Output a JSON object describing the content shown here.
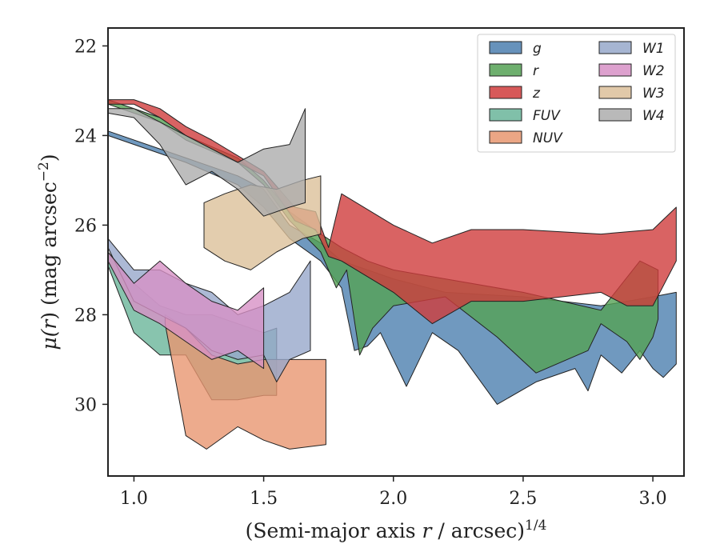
{
  "chart_data": {
    "type": "area",
    "x_label": {
      "prefix": "(Semi-major axis ",
      "var": "r",
      "suffix": " / arcsec)",
      "sup": "1/4"
    },
    "y_label": {
      "prefix": "μ(",
      "var": "r",
      "mid": ") (mag arcsec",
      "sup": "−2",
      "suffix": ")"
    },
    "xlim": [
      0.9,
      3.12
    ],
    "ylim": [
      31.6,
      21.6
    ],
    "y_inverted": true,
    "x_ticks": [
      1.0,
      1.5,
      2.0,
      2.5,
      3.0
    ],
    "x_tick_labels": [
      "1.0",
      "1.5",
      "2.0",
      "2.5",
      "3.0"
    ],
    "y_ticks": [
      22,
      24,
      26,
      28,
      30
    ],
    "y_tick_labels": [
      "22",
      "24",
      "26",
      "28",
      "30"
    ],
    "grid": false,
    "legend_position": "top-right",
    "legend_columns": 2,
    "series": [
      {
        "name": "g",
        "color": "#4c7faf",
        "upper": [
          [
            0.9,
            23.9
          ],
          [
            1.2,
            24.5
          ],
          [
            1.4,
            24.9
          ],
          [
            1.5,
            25.2
          ],
          [
            1.6,
            26.0
          ],
          [
            1.72,
            26.4
          ],
          [
            1.8,
            26.8
          ],
          [
            1.9,
            27.0
          ],
          [
            2.0,
            27.2
          ],
          [
            2.2,
            27.5
          ],
          [
            2.5,
            27.6
          ],
          [
            2.8,
            27.8
          ],
          [
            3.0,
            27.6
          ],
          [
            3.09,
            27.5
          ]
        ],
        "lower": [
          [
            0.9,
            24.0
          ],
          [
            1.2,
            24.6
          ],
          [
            1.4,
            25.1
          ],
          [
            1.5,
            25.6
          ],
          [
            1.6,
            26.3
          ],
          [
            1.72,
            26.8
          ],
          [
            1.8,
            27.4
          ],
          [
            1.85,
            28.8
          ],
          [
            1.9,
            28.7
          ],
          [
            1.95,
            28.4
          ],
          [
            2.05,
            29.6
          ],
          [
            2.15,
            28.4
          ],
          [
            2.25,
            28.8
          ],
          [
            2.4,
            30.0
          ],
          [
            2.55,
            29.5
          ],
          [
            2.7,
            29.2
          ],
          [
            2.75,
            29.7
          ],
          [
            2.8,
            28.9
          ],
          [
            2.88,
            29.3
          ],
          [
            2.95,
            28.8
          ],
          [
            3.0,
            29.2
          ],
          [
            3.04,
            29.4
          ],
          [
            3.09,
            29.1
          ]
        ]
      },
      {
        "name": "r",
        "color": "#55a155",
        "upper": [
          [
            0.9,
            23.2
          ],
          [
            1.1,
            23.6
          ],
          [
            1.2,
            24.0
          ],
          [
            1.4,
            24.5
          ],
          [
            1.5,
            25.0
          ],
          [
            1.6,
            25.7
          ],
          [
            1.72,
            26.2
          ],
          [
            1.8,
            26.5
          ],
          [
            1.9,
            26.8
          ],
          [
            2.0,
            27.0
          ],
          [
            2.2,
            27.2
          ],
          [
            2.5,
            27.5
          ],
          [
            2.8,
            27.9
          ],
          [
            2.95,
            26.8
          ],
          [
            3.02,
            27.0
          ]
        ],
        "lower": [
          [
            0.9,
            23.3
          ],
          [
            1.1,
            23.7
          ],
          [
            1.2,
            24.1
          ],
          [
            1.4,
            24.6
          ],
          [
            1.5,
            25.1
          ],
          [
            1.6,
            25.9
          ],
          [
            1.72,
            26.6
          ],
          [
            1.78,
            27.4
          ],
          [
            1.82,
            27.0
          ],
          [
            1.87,
            28.9
          ],
          [
            1.92,
            28.3
          ],
          [
            2.0,
            27.8
          ],
          [
            2.2,
            27.6
          ],
          [
            2.4,
            28.5
          ],
          [
            2.55,
            29.3
          ],
          [
            2.75,
            28.8
          ],
          [
            2.8,
            28.2
          ],
          [
            2.9,
            28.6
          ],
          [
            2.95,
            29.0
          ],
          [
            3.0,
            28.5
          ],
          [
            3.02,
            28.1
          ]
        ]
      },
      {
        "name": "z",
        "color": "#d03c3c",
        "upper": [
          [
            0.9,
            23.2
          ],
          [
            1.0,
            23.2
          ],
          [
            1.1,
            23.4
          ],
          [
            1.2,
            23.8
          ],
          [
            1.3,
            24.1
          ],
          [
            1.5,
            24.8
          ],
          [
            1.62,
            25.6
          ],
          [
            1.7,
            25.7
          ],
          [
            1.75,
            26.5
          ],
          [
            1.8,
            25.3
          ],
          [
            2.0,
            26.0
          ],
          [
            2.15,
            26.4
          ],
          [
            2.3,
            26.1
          ],
          [
            2.5,
            26.1
          ],
          [
            2.8,
            26.2
          ],
          [
            3.0,
            26.1
          ],
          [
            3.09,
            25.6
          ]
        ],
        "lower": [
          [
            0.9,
            23.3
          ],
          [
            1.0,
            23.3
          ],
          [
            1.1,
            23.6
          ],
          [
            1.2,
            24.0
          ],
          [
            1.3,
            24.3
          ],
          [
            1.5,
            24.9
          ],
          [
            1.62,
            25.9
          ],
          [
            1.7,
            26.1
          ],
          [
            1.75,
            26.7
          ],
          [
            1.8,
            26.8
          ],
          [
            2.0,
            27.5
          ],
          [
            2.15,
            28.2
          ],
          [
            2.3,
            27.7
          ],
          [
            2.5,
            27.7
          ],
          [
            2.8,
            27.5
          ],
          [
            2.9,
            27.8
          ],
          [
            3.0,
            27.8
          ],
          [
            3.09,
            26.8
          ]
        ]
      },
      {
        "name": "FUV",
        "color": "#6ab59a",
        "upper": [
          [
            0.9,
            26.6
          ],
          [
            1.0,
            27.3
          ],
          [
            1.1,
            27.8
          ],
          [
            1.2,
            28.0
          ],
          [
            1.3,
            28.0
          ],
          [
            1.4,
            28.2
          ],
          [
            1.5,
            28.4
          ],
          [
            1.55,
            28.3
          ]
        ],
        "lower": [
          [
            0.9,
            26.9
          ],
          [
            1.0,
            28.4
          ],
          [
            1.1,
            28.9
          ],
          [
            1.2,
            28.9
          ],
          [
            1.3,
            29.9
          ],
          [
            1.4,
            29.9
          ],
          [
            1.5,
            29.8
          ],
          [
            1.55,
            29.8
          ]
        ]
      },
      {
        "name": "NUV",
        "color": "#e89670",
        "upper": [
          [
            1.12,
            28.0
          ],
          [
            1.2,
            28.3
          ],
          [
            1.3,
            28.9
          ],
          [
            1.4,
            29.1
          ],
          [
            1.5,
            29.0
          ],
          [
            1.6,
            29.0
          ],
          [
            1.74,
            29.0
          ]
        ],
        "lower": [
          [
            1.12,
            28.2
          ],
          [
            1.2,
            30.7
          ],
          [
            1.28,
            31.0
          ],
          [
            1.4,
            30.5
          ],
          [
            1.5,
            30.8
          ],
          [
            1.6,
            31.0
          ],
          [
            1.74,
            30.9
          ]
        ]
      },
      {
        "name": "W1",
        "color": "#97a8ca",
        "upper": [
          [
            0.9,
            26.3
          ],
          [
            1.0,
            27.0
          ],
          [
            1.1,
            27.0
          ],
          [
            1.2,
            27.3
          ],
          [
            1.3,
            27.5
          ],
          [
            1.4,
            28.0
          ],
          [
            1.5,
            27.8
          ],
          [
            1.6,
            27.5
          ],
          [
            1.68,
            26.8
          ]
        ],
        "lower": [
          [
            0.9,
            26.5
          ],
          [
            1.0,
            27.7
          ],
          [
            1.1,
            28.0
          ],
          [
            1.2,
            28.3
          ],
          [
            1.3,
            28.8
          ],
          [
            1.4,
            29.0
          ],
          [
            1.5,
            28.9
          ],
          [
            1.55,
            29.5
          ],
          [
            1.6,
            29.0
          ],
          [
            1.68,
            28.8
          ]
        ]
      },
      {
        "name": "W2",
        "color": "#d791c6",
        "upper": [
          [
            0.9,
            26.6
          ],
          [
            1.0,
            27.3
          ],
          [
            1.1,
            26.8
          ],
          [
            1.2,
            27.3
          ],
          [
            1.3,
            27.7
          ],
          [
            1.4,
            27.9
          ],
          [
            1.5,
            27.4
          ]
        ],
        "lower": [
          [
            0.9,
            26.8
          ],
          [
            1.0,
            27.9
          ],
          [
            1.1,
            28.2
          ],
          [
            1.2,
            28.6
          ],
          [
            1.3,
            29.0
          ],
          [
            1.4,
            28.8
          ],
          [
            1.5,
            29.2
          ]
        ]
      },
      {
        "name": "W3",
        "color": "#dcc09a",
        "upper": [
          [
            1.27,
            25.5
          ],
          [
            1.35,
            25.3
          ],
          [
            1.45,
            25.1
          ],
          [
            1.55,
            25.2
          ],
          [
            1.65,
            25.0
          ],
          [
            1.72,
            24.9
          ]
        ],
        "lower": [
          [
            1.27,
            26.5
          ],
          [
            1.35,
            26.8
          ],
          [
            1.45,
            27.0
          ],
          [
            1.55,
            26.6
          ],
          [
            1.65,
            26.3
          ],
          [
            1.72,
            26.2
          ]
        ]
      },
      {
        "name": "W4",
        "color": "#adadad",
        "upper": [
          [
            0.9,
            23.4
          ],
          [
            1.0,
            23.4
          ],
          [
            1.1,
            23.7
          ],
          [
            1.2,
            24.0
          ],
          [
            1.3,
            24.3
          ],
          [
            1.4,
            24.6
          ],
          [
            1.5,
            24.3
          ],
          [
            1.6,
            24.2
          ],
          [
            1.66,
            23.4
          ]
        ],
        "lower": [
          [
            0.9,
            23.5
          ],
          [
            1.0,
            23.6
          ],
          [
            1.1,
            24.2
          ],
          [
            1.2,
            25.1
          ],
          [
            1.3,
            24.8
          ],
          [
            1.4,
            25.2
          ],
          [
            1.5,
            25.8
          ],
          [
            1.6,
            25.6
          ],
          [
            1.66,
            25.5
          ]
        ]
      }
    ]
  }
}
